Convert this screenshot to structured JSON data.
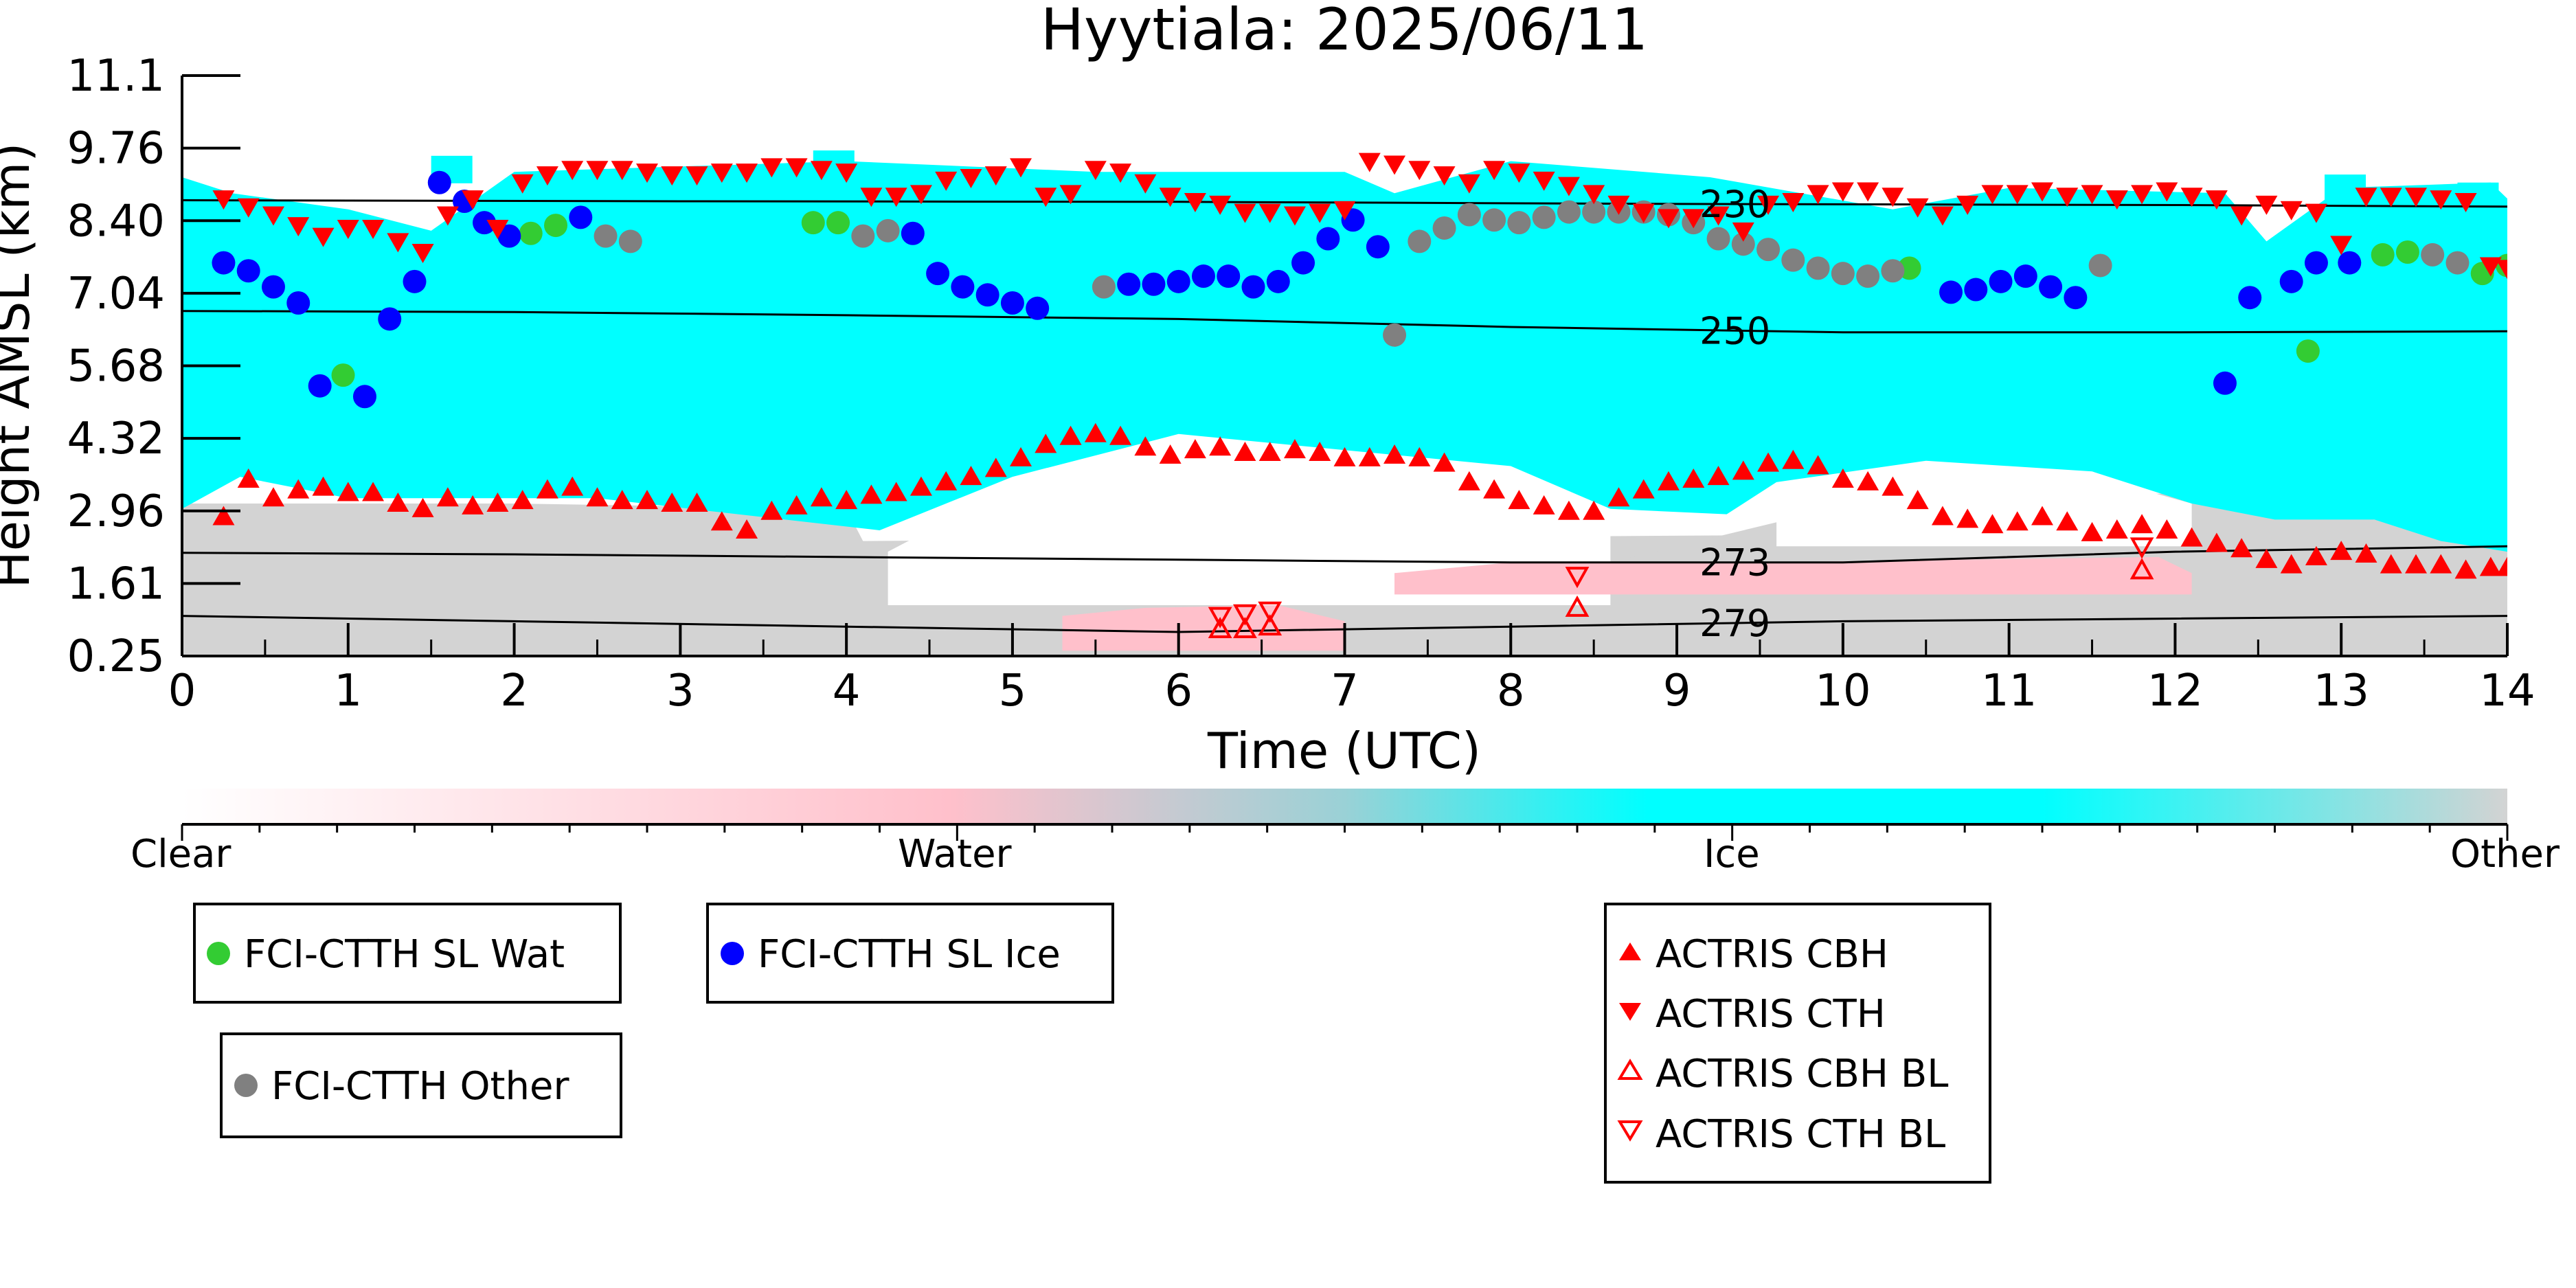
{
  "chart_data": {
    "type": "scatter",
    "title": "Hyytiala: 2025/06/11",
    "xlabel": "Time (UTC)",
    "ylabel": "Height AMSL (km)",
    "xlim": [
      0,
      14
    ],
    "ylim": [
      0.25,
      11.1
    ],
    "xticks": [
      "0",
      "1",
      "2",
      "3",
      "4",
      "5",
      "6",
      "7",
      "8",
      "9",
      "10",
      "11",
      "12",
      "13",
      "14"
    ],
    "yticks": [
      "0.25",
      "1.61",
      "2.96",
      "4.32",
      "5.68",
      "7.04",
      "8.40",
      "9.76",
      "11.1"
    ],
    "colors": {
      "clear": "#ffffff",
      "water": "#ffc0cb",
      "ice": "#00ffff",
      "other": "#d3d3d3",
      "fci_wat": "#33cc33",
      "fci_ice": "#0000ff",
      "fci_other": "#808080",
      "actris": "#ff0000"
    },
    "colorbar": {
      "labels": [
        "Clear",
        "Water",
        "Ice",
        "Other"
      ]
    },
    "isotherms": [
      {
        "label": "230",
        "x": [
          0,
          3,
          6,
          9,
          12,
          14
        ],
        "y": [
          8.77,
          8.75,
          8.74,
          8.7,
          8.68,
          8.65
        ]
      },
      {
        "label": "250",
        "x": [
          0,
          2,
          4,
          6,
          8,
          10,
          12,
          14
        ],
        "y": [
          6.7,
          6.68,
          6.62,
          6.55,
          6.4,
          6.3,
          6.3,
          6.32
        ]
      },
      {
        "label": "273",
        "x": [
          0,
          2,
          4,
          6,
          8,
          10,
          12,
          14
        ],
        "y": [
          2.18,
          2.15,
          2.1,
          2.05,
          2.0,
          2.0,
          2.2,
          2.3
        ]
      },
      {
        "label": "279",
        "x": [
          0,
          2,
          4,
          6,
          8,
          10,
          12,
          14
        ],
        "y": [
          1.0,
          0.9,
          0.8,
          0.7,
          0.8,
          0.9,
          0.95,
          1.0
        ]
      }
    ],
    "series": [
      {
        "name": "FCI-CTTH SL Wat",
        "marker": "circle",
        "x": [
          0.97,
          2.1,
          2.25,
          3.8,
          3.95,
          10.4,
          12.8,
          13.25,
          13.4,
          13.85,
          14.0
        ],
        "y": [
          5.5,
          8.15,
          8.3,
          8.35,
          8.35,
          7.5,
          5.95,
          7.75,
          7.8,
          7.4,
          7.55
        ]
      },
      {
        "name": "FCI-CTTH SL Ice",
        "marker": "circle",
        "x": [
          0.25,
          0.4,
          0.55,
          0.7,
          0.83,
          1.1,
          1.25,
          1.4,
          1.55,
          1.7,
          1.82,
          1.97,
          2.4,
          4.4,
          4.55,
          4.7,
          4.85,
          5.0,
          5.15,
          5.7,
          5.85,
          6.0,
          6.15,
          6.3,
          6.45,
          6.6,
          6.75,
          6.9,
          7.05,
          7.2,
          10.65,
          10.8,
          10.95,
          11.1,
          11.25,
          11.4,
          12.3,
          12.45,
          12.7,
          12.85,
          13.05
        ],
        "y": [
          7.6,
          7.45,
          7.15,
          6.85,
          5.3,
          5.1,
          6.55,
          7.25,
          9.1,
          8.75,
          8.35,
          8.1,
          8.45,
          8.15,
          7.4,
          7.15,
          7.0,
          6.85,
          6.75,
          7.2,
          7.2,
          7.25,
          7.35,
          7.35,
          7.15,
          7.25,
          7.6,
          8.05,
          8.4,
          7.9,
          7.05,
          7.1,
          7.25,
          7.35,
          7.15,
          6.95,
          5.35,
          6.95,
          7.25,
          7.6,
          7.6
        ]
      },
      {
        "name": "FCI-CTTH Other",
        "marker": "circle",
        "x": [
          2.55,
          2.7,
          4.1,
          4.25,
          5.55,
          7.3,
          7.45,
          7.6,
          7.75,
          7.9,
          8.05,
          8.2,
          8.35,
          8.5,
          8.65,
          8.8,
          8.95,
          9.1,
          9.25,
          9.4,
          9.55,
          9.7,
          9.85,
          10.0,
          10.15,
          10.3,
          11.55,
          13.55,
          13.7
        ],
        "y": [
          8.1,
          8.0,
          8.1,
          8.2,
          7.15,
          6.25,
          8.0,
          8.25,
          8.5,
          8.4,
          8.35,
          8.45,
          8.55,
          8.55,
          8.55,
          8.55,
          8.5,
          8.35,
          8.05,
          7.95,
          7.85,
          7.65,
          7.5,
          7.4,
          7.35,
          7.45,
          7.55,
          7.75,
          7.6
        ]
      },
      {
        "name": "ACTRIS CBH",
        "marker": "triangle-up",
        "x": [
          0.25,
          0.4,
          0.55,
          0.7,
          0.85,
          1.0,
          1.15,
          1.3,
          1.45,
          1.6,
          1.75,
          1.9,
          2.05,
          2.2,
          2.35,
          2.5,
          2.65,
          2.8,
          2.95,
          3.1,
          3.25,
          3.4,
          3.55,
          3.7,
          3.85,
          4.0,
          4.15,
          4.3,
          4.45,
          4.6,
          4.75,
          4.9,
          5.05,
          5.2,
          5.35,
          5.5,
          5.65,
          5.8,
          5.95,
          6.1,
          6.25,
          6.4,
          6.55,
          6.7,
          6.85,
          7.0,
          7.15,
          7.3,
          7.45,
          7.6,
          7.75,
          7.9,
          8.05,
          8.2,
          8.35,
          8.5,
          8.65,
          8.8,
          8.95,
          9.1,
          9.25,
          9.4,
          9.55,
          9.7,
          9.85,
          10.0,
          10.15,
          10.3,
          10.45,
          10.6,
          10.75,
          10.9,
          11.05,
          11.2,
          11.35,
          11.5,
          11.65,
          11.8,
          11.95,
          12.1,
          12.25,
          12.4,
          12.55,
          12.7,
          12.85,
          13.0,
          13.15,
          13.3,
          13.45,
          13.6,
          13.75,
          13.9,
          14.0
        ],
        "y": [
          2.85,
          3.55,
          3.2,
          3.35,
          3.4,
          3.3,
          3.3,
          3.1,
          3.0,
          3.2,
          3.05,
          3.1,
          3.15,
          3.35,
          3.4,
          3.2,
          3.15,
          3.15,
          3.1,
          3.1,
          2.75,
          2.6,
          2.95,
          3.05,
          3.2,
          3.15,
          3.25,
          3.3,
          3.4,
          3.5,
          3.6,
          3.75,
          3.95,
          4.2,
          4.35,
          4.4,
          4.35,
          4.15,
          4.0,
          4.1,
          4.15,
          4.05,
          4.05,
          4.1,
          4.05,
          3.95,
          3.95,
          4.0,
          3.95,
          3.85,
          3.5,
          3.35,
          3.15,
          3.05,
          2.95,
          2.95,
          3.2,
          3.35,
          3.5,
          3.55,
          3.6,
          3.7,
          3.85,
          3.9,
          3.8,
          3.55,
          3.5,
          3.4,
          3.15,
          2.85,
          2.8,
          2.7,
          2.75,
          2.85,
          2.75,
          2.55,
          2.6,
          2.7,
          2.6,
          2.45,
          2.35,
          2.25,
          2.05,
          1.95,
          2.1,
          2.2,
          2.15,
          1.95,
          1.95,
          1.95,
          1.85,
          1.9,
          1.9
        ]
      },
      {
        "name": "ACTRIS CTH",
        "marker": "triangle-down",
        "x": [
          0.25,
          0.4,
          0.55,
          0.7,
          0.85,
          1.0,
          1.15,
          1.3,
          1.45,
          1.6,
          1.75,
          1.9,
          2.05,
          2.2,
          2.35,
          2.5,
          2.65,
          2.8,
          2.95,
          3.1,
          3.25,
          3.4,
          3.55,
          3.7,
          3.85,
          4.0,
          4.15,
          4.3,
          4.45,
          4.6,
          4.75,
          4.9,
          5.05,
          5.2,
          5.35,
          5.5,
          5.65,
          5.8,
          5.95,
          6.1,
          6.25,
          6.4,
          6.55,
          6.7,
          6.85,
          7.0,
          7.15,
          7.3,
          7.45,
          7.6,
          7.75,
          7.9,
          8.05,
          8.2,
          8.35,
          8.5,
          8.65,
          8.8,
          8.95,
          9.1,
          9.25,
          9.4,
          9.55,
          9.7,
          9.85,
          10.0,
          10.15,
          10.3,
          10.45,
          10.6,
          10.75,
          10.9,
          11.05,
          11.2,
          11.35,
          11.5,
          11.65,
          11.8,
          11.95,
          12.1,
          12.25,
          12.4,
          12.55,
          12.7,
          12.85,
          13.0,
          13.15,
          13.3,
          13.45,
          13.6,
          13.75,
          13.9,
          14.0
        ],
        "y": [
          8.8,
          8.65,
          8.5,
          8.3,
          8.1,
          8.25,
          8.25,
          8.0,
          7.8,
          8.5,
          8.8,
          8.25,
          9.1,
          9.25,
          9.35,
          9.35,
          9.35,
          9.3,
          9.25,
          9.25,
          9.3,
          9.3,
          9.4,
          9.4,
          9.35,
          9.3,
          8.85,
          8.85,
          8.9,
          9.15,
          9.2,
          9.25,
          9.4,
          8.85,
          8.9,
          9.35,
          9.3,
          9.1,
          8.85,
          8.75,
          8.7,
          8.55,
          8.55,
          8.5,
          8.55,
          8.6,
          9.5,
          9.45,
          9.35,
          9.25,
          9.1,
          9.35,
          9.3,
          9.15,
          9.05,
          8.9,
          8.7,
          8.55,
          8.45,
          8.45,
          8.5,
          8.2,
          8.7,
          8.75,
          8.9,
          8.95,
          8.95,
          8.85,
          8.65,
          8.5,
          8.7,
          8.9,
          8.9,
          8.95,
          8.85,
          8.9,
          8.8,
          8.9,
          8.95,
          8.85,
          8.8,
          8.5,
          8.7,
          8.6,
          8.55,
          7.95,
          8.85,
          8.85,
          8.85,
          8.8,
          8.75,
          7.55,
          7.5
        ]
      },
      {
        "name": "ACTRIS CBH BL",
        "marker": "triangle-up-open",
        "x": [
          6.25,
          6.4,
          6.55,
          8.4,
          11.8
        ],
        "y": [
          0.75,
          0.75,
          0.8,
          1.15,
          1.85
        ]
      },
      {
        "name": "ACTRIS CTH BL",
        "marker": "triangle-down-open",
        "x": [
          6.25,
          6.4,
          6.55,
          8.4,
          11.8
        ],
        "y": [
          1.0,
          1.05,
          1.1,
          1.75,
          2.3
        ]
      }
    ],
    "legend_placement": "below chart"
  }
}
